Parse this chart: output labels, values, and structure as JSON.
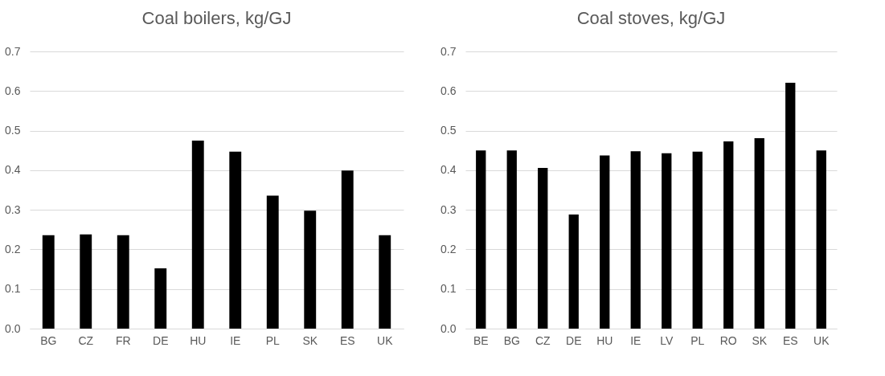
{
  "chart_data": [
    {
      "type": "bar",
      "title": "Coal boilers, kg/GJ",
      "categories": [
        "BG",
        "CZ",
        "FR",
        "DE",
        "HU",
        "IE",
        "PL",
        "SK",
        "ES",
        "UK"
      ],
      "values": [
        0.236,
        0.238,
        0.236,
        0.152,
        0.475,
        0.447,
        0.336,
        0.298,
        0.399,
        0.236
      ],
      "color": "#000000",
      "ylim": [
        0,
        0.7
      ],
      "yticks": [
        {
          "value": 0,
          "label": "0.0"
        },
        0.1,
        0.2,
        0.3,
        0.4,
        0.5,
        0.6,
        0.7
      ],
      "grid": "y"
    },
    {
      "type": "bar",
      "title": "Coal stoves, kg/GJ",
      "categories": [
        "BE",
        "BG",
        "CZ",
        "DE",
        "HU",
        "IE",
        "LV",
        "PL",
        "RO",
        "SK",
        "ES",
        "UK"
      ],
      "values": [
        0.45,
        0.45,
        0.406,
        0.288,
        0.437,
        0.448,
        0.443,
        0.447,
        0.473,
        0.481,
        0.621,
        0.45
      ],
      "color": "#000000",
      "ylim": [
        0,
        0.7
      ],
      "yticks": [
        {
          "value": 0,
          "label": "0.0"
        },
        0.1,
        0.2,
        0.3,
        0.4,
        0.5,
        0.6,
        0.7
      ],
      "grid": "y"
    }
  ]
}
